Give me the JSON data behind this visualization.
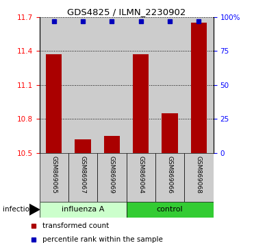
{
  "title": "GDS4825 / ILMN_2230902",
  "samples": [
    "GSM869065",
    "GSM869067",
    "GSM869069",
    "GSM869064",
    "GSM869066",
    "GSM869068"
  ],
  "red_values": [
    11.37,
    10.62,
    10.65,
    11.37,
    10.85,
    11.65
  ],
  "blue_values": [
    97,
    97,
    97,
    97,
    97,
    97
  ],
  "ylim_left": [
    10.5,
    11.7
  ],
  "ylim_right": [
    0,
    100
  ],
  "yticks_left": [
    10.5,
    10.8,
    11.1,
    11.4,
    11.7
  ],
  "yticks_right": [
    0,
    25,
    50,
    75,
    100
  ],
  "ytick_labels_right": [
    "0",
    "25",
    "50",
    "75",
    "100%"
  ],
  "group1_label": "influenza A",
  "group2_label": "control",
  "factor_label": "infection",
  "bar_color": "#aa0000",
  "dot_color": "#0000bb",
  "group1_bg": "#ccffcc",
  "group2_bg": "#33cc33",
  "sample_bg": "#cccccc",
  "bar_bottom": 10.5,
  "red_legend": "transformed count",
  "blue_legend": "percentile rank within the sample",
  "bar_width": 0.55
}
